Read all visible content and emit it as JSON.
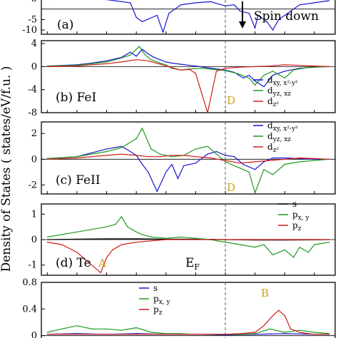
{
  "figure": {
    "ylabel": "Density of States ( states/eV/f.u. )",
    "fermi_label": "E",
    "fermi_sub": "F",
    "spin_down_label": "Spin down"
  },
  "colors": {
    "blue": "#1515d0",
    "green": "#1f9a1f",
    "red": "#d01a1a",
    "black": "#000000",
    "orange": "#d4a017"
  },
  "chart_data": [
    {
      "type": "line",
      "panel_label": "(a)",
      "ylim": [
        -12,
        5
      ],
      "yticks": [
        5,
        -5,
        -10
      ],
      "fermi_x": 0.0,
      "annotations": [
        "Spin down"
      ],
      "series": [
        {
          "color": "blue",
          "x": [
            -6,
            -5,
            -4,
            -3.2,
            -3,
            -2.8,
            -2.3,
            -2.1,
            -1.9,
            -1.5,
            -1,
            -0.5,
            0,
            0.3,
            0.5,
            0.8,
            1.0,
            1.1,
            1.4,
            1.6,
            1.8,
            2.0,
            2.5,
            3.0,
            3.5
          ],
          "values": [
            4.5,
            4.8,
            4.5,
            3,
            -4,
            -6,
            -3,
            -11,
            -2,
            2,
            3,
            3.5,
            1.5,
            2,
            -1,
            -2,
            -9,
            -3,
            -6,
            -10,
            -5,
            -3,
            2,
            3,
            4
          ]
        }
      ]
    },
    {
      "type": "line",
      "panel_label": "(b) FeI",
      "ylim": [
        -8,
        4.5
      ],
      "yticks": [
        4,
        0,
        -4,
        -8
      ],
      "fermi_x": 0.0,
      "annotations": [
        "D"
      ],
      "legend": [
        {
          "label": "d",
          "sub": "xy, x²-y²",
          "color": "blue"
        },
        {
          "label": "d",
          "sub": "yz, xz",
          "color": "green"
        },
        {
          "label": "d",
          "sub": "z²",
          "color": "red"
        }
      ],
      "series": [
        {
          "color": "blue",
          "x": [
            -6,
            -5,
            -4.5,
            -4,
            -3.5,
            -3.2,
            -3,
            -2.8,
            -2.6,
            -2.4,
            -2.2,
            -2.0,
            -1.8,
            -1.5,
            -1.2,
            -1.0,
            -0.6,
            -0.3,
            0,
            0.3,
            0.6,
            0.8,
            1.0,
            1.3,
            1.6,
            2.0,
            2.5,
            3.0,
            3.5
          ],
          "values": [
            0.1,
            0.3,
            0.6,
            1,
            1.6,
            2.5,
            1.8,
            3.0,
            2.2,
            1.6,
            1.2,
            0.8,
            0.6,
            0.4,
            0.2,
            0.1,
            -0.2,
            -0.4,
            -0.6,
            -1.0,
            -2.0,
            -1.5,
            -2.5,
            -3.5,
            -1.5,
            -0.8,
            -0.3,
            -0.1,
            0
          ]
        },
        {
          "color": "green",
          "x": [
            -6,
            -5,
            -4.5,
            -4,
            -3.5,
            -3.2,
            -2.9,
            -2.7,
            -2.5,
            -2.2,
            -2.0,
            -1.8,
            -1.5,
            -1.2,
            -0.8,
            -0.4,
            0,
            0.4,
            0.8,
            1.0,
            1.3,
            1.6,
            2.0,
            2.3,
            2.6,
            3.0,
            3.5
          ],
          "values": [
            0.1,
            0.2,
            0.5,
            0.8,
            1.5,
            2.0,
            3.5,
            2.0,
            1.2,
            0.6,
            0.3,
            -0.3,
            -0.6,
            -0.4,
            -0.3,
            -0.5,
            -0.7,
            -1.2,
            -2.0,
            -3.2,
            -1.5,
            -0.8,
            -2.0,
            -0.6,
            -0.3,
            -0.1,
            0
          ]
        },
        {
          "color": "red",
          "x": [
            -6,
            -5,
            -4.5,
            -4,
            -3.5,
            -3.0,
            -2.6,
            -2.2,
            -1.8,
            -1.5,
            -1.2,
            -1.0,
            -0.6,
            -0.3,
            0,
            0.5,
            1.0,
            1.5,
            2.0,
            2.5,
            3.0,
            3.5
          ],
          "values": [
            0,
            0.1,
            0.3,
            0.5,
            0.8,
            1.2,
            1.0,
            0.4,
            -0.2,
            -0.6,
            -0.5,
            -1.2,
            -8.0,
            -0.8,
            -0.3,
            -0.1,
            0,
            0.1,
            0.3,
            0.2,
            0.1,
            0
          ]
        }
      ]
    },
    {
      "type": "line",
      "panel_label": "(c) FeII",
      "ylim": [
        -2.7,
        2.9
      ],
      "yticks": [
        2,
        0,
        -2
      ],
      "fermi_x": 0.0,
      "annotations": [
        "D"
      ],
      "legend": [
        {
          "label": "d",
          "sub": "xy, x²-y²",
          "color": "blue"
        },
        {
          "label": "d",
          "sub": "yz, xz",
          "color": "green"
        },
        {
          "label": "d",
          "sub": "z²",
          "color": "red"
        }
      ],
      "series": [
        {
          "color": "blue",
          "x": [
            -6,
            -5,
            -4.5,
            -4,
            -3.5,
            -3.2,
            -3,
            -2.8,
            -2.6,
            -2.3,
            -2.0,
            -1.8,
            -1.6,
            -1.4,
            -1.0,
            -0.6,
            -0.3,
            0,
            0.3,
            0.6,
            1.0,
            1.3,
            1.6,
            2.0,
            2.5,
            3.0,
            3.5
          ],
          "values": [
            0.05,
            0.2,
            0.5,
            0.8,
            1.0,
            0.6,
            0.3,
            -0.4,
            -1.0,
            -2.5,
            -1.0,
            -0.4,
            -1.5,
            -0.5,
            -0.3,
            0.4,
            0.6,
            0.3,
            0.2,
            -0.4,
            -0.8,
            -0.2,
            0.1,
            0.1,
            0.05,
            0,
            0
          ]
        },
        {
          "color": "green",
          "x": [
            -6,
            -5,
            -4.5,
            -4,
            -3.5,
            -3.0,
            -2.8,
            -2.5,
            -2.2,
            -1.8,
            -1.4,
            -1.0,
            -0.6,
            -0.3,
            0,
            0.4,
            0.8,
            1.0,
            1.3,
            1.6,
            2.0,
            2.5,
            3.0,
            3.5
          ],
          "values": [
            0.05,
            0.2,
            0.4,
            0.6,
            0.9,
            1.6,
            2.4,
            0.8,
            0.4,
            0.2,
            0.3,
            0.8,
            1.0,
            0.4,
            -0.2,
            -0.6,
            -1.0,
            -2.6,
            -0.8,
            -1.2,
            -0.4,
            -0.2,
            -0.1,
            0
          ]
        },
        {
          "color": "red",
          "x": [
            -6,
            -5,
            -4,
            -3.5,
            -3.0,
            -2.6,
            -2.2,
            -1.8,
            -1.4,
            -1.0,
            -0.5,
            0,
            0.5,
            1.0,
            1.5,
            2.0,
            2.5,
            3.0,
            3.5
          ],
          "values": [
            0,
            0.1,
            0.3,
            0.4,
            0.3,
            0.2,
            0.2,
            0.3,
            0.3,
            0.2,
            0.1,
            -0.1,
            -0.3,
            -0.2,
            -0.1,
            0,
            0.1,
            0.05,
            0
          ]
        }
      ]
    },
    {
      "type": "line",
      "panel_label": "(d) Te",
      "ylim": [
        -1.4,
        1.4
      ],
      "yticks": [
        1,
        0,
        -1
      ],
      "fermi_x": 0.0,
      "annotations": [
        "A"
      ],
      "legend": [
        {
          "label": "s",
          "sub": "",
          "color": "black"
        },
        {
          "label": "p",
          "sub": "x, y",
          "color": "green"
        },
        {
          "label": "p",
          "sub": "z",
          "color": "red"
        }
      ],
      "series": [
        {
          "color": "black",
          "x": [
            -6,
            -5,
            -4,
            -3,
            -2,
            -1,
            0,
            1,
            2,
            3,
            3.5
          ],
          "values": [
            0,
            0.02,
            0.03,
            0.03,
            0.02,
            0.02,
            0,
            -0.02,
            -0.02,
            -0.01,
            0
          ]
        },
        {
          "color": "green",
          "x": [
            -6,
            -5.5,
            -5,
            -4.5,
            -4,
            -3.7,
            -3.5,
            -3.3,
            -3.0,
            -2.8,
            -2.5,
            -2.0,
            -1.5,
            -1.0,
            -0.5,
            0,
            0.5,
            1.0,
            1.3,
            1.6,
            2.0,
            2.3,
            2.5,
            2.8,
            3.0,
            3.5
          ],
          "values": [
            0.1,
            0.2,
            0.3,
            0.4,
            0.5,
            0.6,
            0.9,
            0.5,
            0.3,
            0.2,
            0.1,
            0.05,
            0.1,
            0.05,
            0,
            -0.1,
            -0.2,
            -0.3,
            -0.2,
            -0.6,
            -0.4,
            -0.7,
            -0.3,
            -0.5,
            -0.2,
            -0.1
          ]
        },
        {
          "color": "red",
          "x": [
            -6,
            -5.5,
            -5,
            -4.7,
            -4.4,
            -4.2,
            -4.0,
            -3.8,
            -3.5,
            -3.0,
            -2.5,
            -2.0,
            -1.5,
            -1.0,
            -0.5,
            0,
            0.5,
            1.0,
            2.0,
            3.0,
            3.5
          ],
          "values": [
            -0.1,
            -0.2,
            -0.5,
            -0.8,
            -1.1,
            -1.3,
            -0.7,
            -0.4,
            -0.2,
            -0.1,
            -0.05,
            0,
            0,
            0,
            0,
            0,
            0,
            0,
            0,
            0,
            0
          ]
        }
      ]
    },
    {
      "type": "line",
      "panel_label": "",
      "ylim": [
        -0.1,
        0.8
      ],
      "yticks": [
        0.8,
        0.4,
        0
      ],
      "fermi_x": 0.0,
      "annotations": [
        "B"
      ],
      "legend": [
        {
          "label": "s",
          "sub": "",
          "color": "blue"
        },
        {
          "label": "p",
          "sub": "x, y",
          "color": "green"
        },
        {
          "label": "p",
          "sub": "z",
          "color": "red"
        }
      ],
      "series": [
        {
          "color": "blue",
          "x": [
            -6,
            -5,
            -4,
            -3,
            -2,
            -1,
            0,
            1,
            2,
            3,
            3.5
          ],
          "values": [
            0.02,
            0.03,
            0.02,
            0.03,
            0.02,
            0.02,
            0.01,
            0.02,
            0.03,
            0.02,
            0.02
          ]
        },
        {
          "color": "green",
          "x": [
            -6,
            -5.5,
            -5,
            -4.5,
            -4.0,
            -3.5,
            -3.0,
            -2.5,
            -2.0,
            -1.5,
            -1.0,
            -0.5,
            0,
            0.5,
            1.0,
            1.5,
            2.0,
            2.5,
            3.0,
            3.5
          ],
          "values": [
            0.05,
            0.1,
            0.15,
            0.1,
            0.1,
            0.08,
            0.12,
            0.05,
            0.03,
            0.03,
            0.02,
            0.02,
            0.02,
            0.02,
            0.03,
            0.1,
            0.05,
            0.08,
            0.05,
            0.03
          ]
        },
        {
          "color": "red",
          "x": [
            -6,
            -5,
            -4,
            -3,
            -2,
            -1,
            0,
            0.5,
            1.0,
            1.3,
            1.6,
            1.8,
            2.0,
            2.2,
            2.5,
            2.8,
            3.0,
            3.5
          ],
          "values": [
            0.02,
            0.02,
            0.02,
            0.02,
            0.02,
            0.02,
            0.02,
            0.03,
            0.05,
            0.15,
            0.3,
            0.38,
            0.3,
            0.1,
            0.05,
            0.03,
            0.02,
            0.02
          ]
        }
      ]
    }
  ]
}
